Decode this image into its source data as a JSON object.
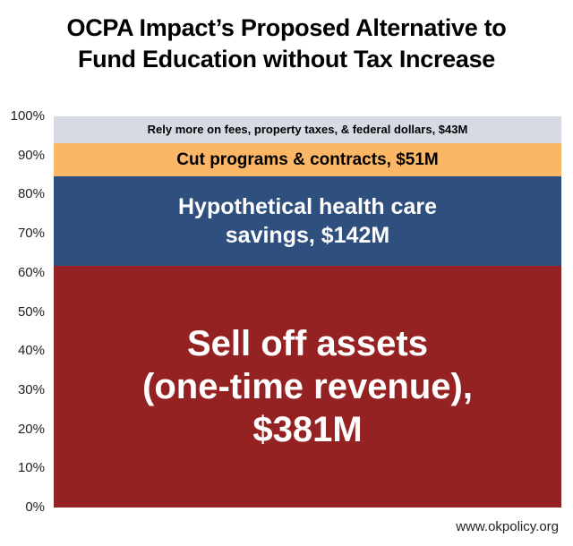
{
  "page": {
    "title_line1": "OCPA Impact’s Proposed Alternative to",
    "title_line2": "Fund Education without Tax Increase",
    "footer": "www.okpolicy.org"
  },
  "chart_data": {
    "type": "bar",
    "subtype": "100% stacked single bar",
    "title": "OCPA Impact’s Proposed Alternative to Fund Education without Tax Increase",
    "xlabel": "",
    "ylabel": "",
    "ylim": [
      0,
      100
    ],
    "ytick_labels": [
      "0%",
      "10%",
      "20%",
      "30%",
      "40%",
      "50%",
      "60%",
      "70%",
      "80%",
      "90%",
      "100%"
    ],
    "ytick_values": [
      0,
      10,
      20,
      30,
      40,
      50,
      60,
      70,
      80,
      90,
      100
    ],
    "series": [
      {
        "name": "Sell off assets (one-time revenue)",
        "value": 381,
        "unit": "$M",
        "label_lines": [
          "Sell off assets",
          "(one-time revenue),",
          "$381M"
        ],
        "color": "#952222",
        "text_color": "#ffffff"
      },
      {
        "name": "Hypothetical health care savings",
        "value": 142,
        "unit": "$M",
        "label_lines": [
          "Hypothetical health care",
          "savings, $142M"
        ],
        "color": "#2f4f7f",
        "text_color": "#ffffff"
      },
      {
        "name": "Cut programs & contracts",
        "value": 51,
        "unit": "$M",
        "label_lines": [
          "Cut programs & contracts, $51M"
        ],
        "color": "#fbb766",
        "text_color": "#000000"
      },
      {
        "name": "Rely more on fees, property taxes, & federal dollars",
        "value": 43,
        "unit": "$M",
        "label_lines": [
          "Rely more on fees, property taxes, & federal dollars, $43M"
        ],
        "color": "#d6dbe3",
        "text_color": "#000000"
      }
    ]
  }
}
